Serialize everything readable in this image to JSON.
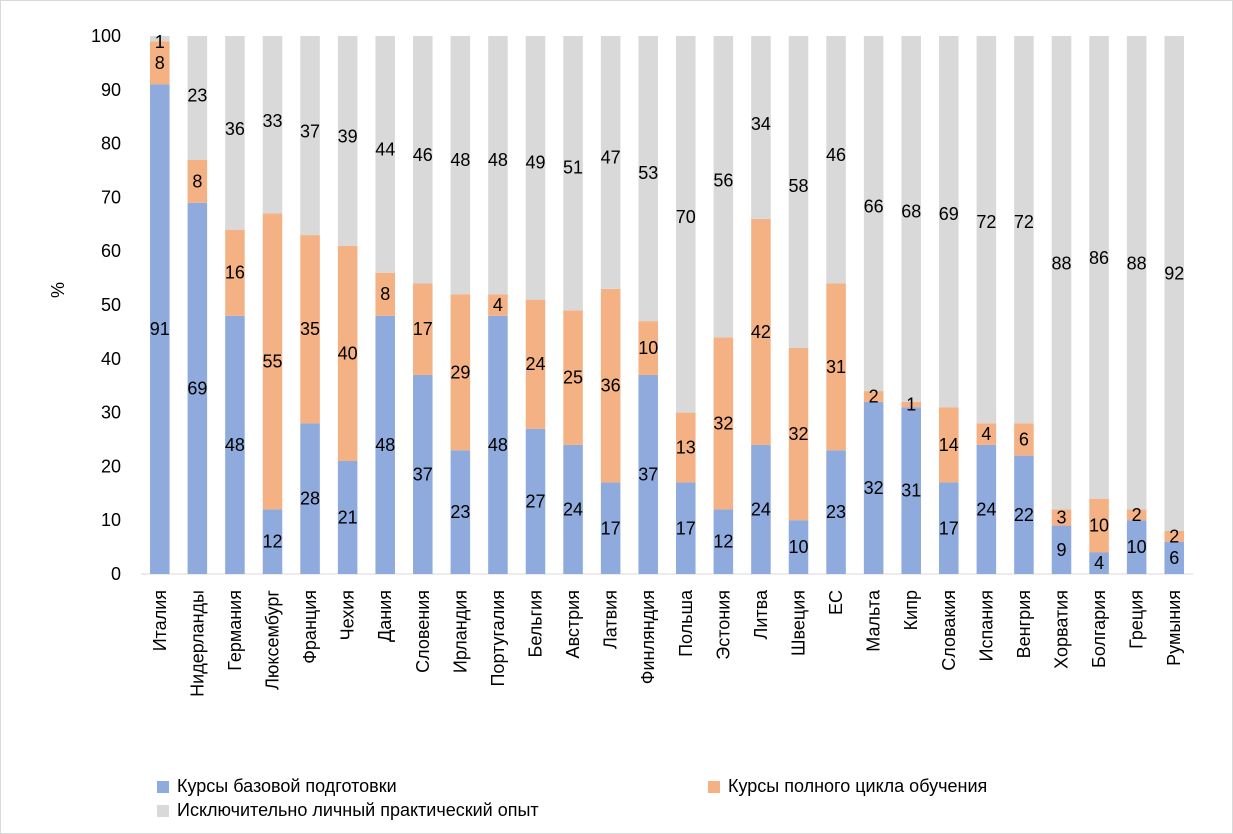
{
  "chart_data": {
    "type": "bar",
    "stacked": true,
    "title": "",
    "xlabel": "",
    "ylabel": "%",
    "ylim": [
      0,
      100
    ],
    "yticks": [
      0,
      10,
      20,
      30,
      40,
      50,
      60,
      70,
      80,
      90,
      100
    ],
    "grid": false,
    "legend_position": "bottom",
    "categories": [
      "Италия",
      "Нидерланды",
      "Германия",
      "Люксембург",
      "Франция",
      "Чехия",
      "Дания",
      "Словения",
      "Ирландия",
      "Португалия",
      "Бельгия",
      "Австрия",
      "Латвия",
      "Финляндия",
      "Польша",
      "Эстония",
      "Литва",
      "Швеция",
      "ЕС",
      "Мальта",
      "Кипр",
      "Словакия",
      "Испания",
      "Венгрия",
      "Хорватия",
      "Болгария",
      "Греция",
      "Румыния"
    ],
    "series": [
      {
        "name": "Курсы базовой подготовки",
        "color": "#8faadc",
        "values": [
          91,
          69,
          48,
          12,
          28,
          21,
          48,
          37,
          23,
          48,
          27,
          24,
          17,
          37,
          17,
          12,
          24,
          10,
          23,
          32,
          31,
          17,
          24,
          22,
          9,
          4,
          10,
          6
        ]
      },
      {
        "name": "Курсы полного цикла обучения",
        "color": "#f4b183",
        "values": [
          8,
          8,
          16,
          55,
          35,
          40,
          8,
          17,
          29,
          4,
          24,
          25,
          36,
          10,
          13,
          32,
          42,
          32,
          31,
          2,
          1,
          14,
          4,
          6,
          3,
          10,
          2,
          2
        ]
      },
      {
        "name": "Исключительно личный практический опыт",
        "color": "#d9d9d9",
        "values": [
          1,
          23,
          36,
          33,
          37,
          39,
          44,
          46,
          48,
          48,
          49,
          51,
          47,
          53,
          70,
          56,
          34,
          58,
          46,
          66,
          68,
          69,
          72,
          72,
          88,
          86,
          88,
          92
        ]
      }
    ]
  }
}
